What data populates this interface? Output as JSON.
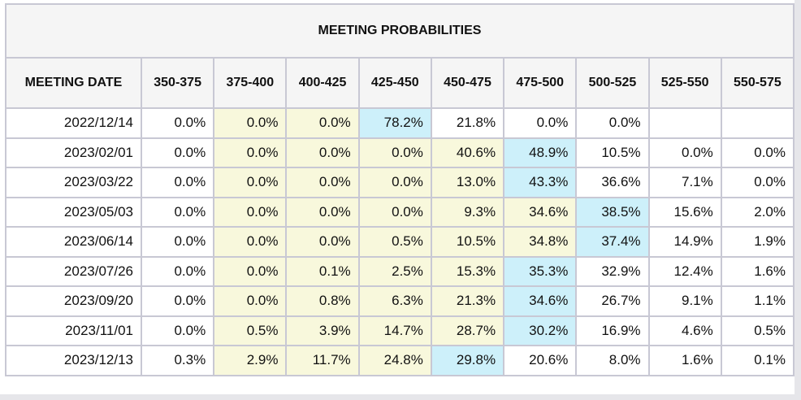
{
  "title": "MEETING PROBABILITIES",
  "headers": [
    "MEETING DATE",
    "350-375",
    "375-400",
    "400-425",
    "425-450",
    "450-475",
    "475-500",
    "500-525",
    "525-550",
    "550-575"
  ],
  "colors": {
    "yellow": "#f8f8dc",
    "blue": "#cdf0fa"
  },
  "rows": [
    {
      "date": "2022/12/14",
      "cells": [
        [
          "0.0%",
          "none"
        ],
        [
          "0.0%",
          "yellow"
        ],
        [
          "0.0%",
          "yellow"
        ],
        [
          "78.2%",
          "blue"
        ],
        [
          "21.8%",
          "none"
        ],
        [
          "0.0%",
          "none"
        ],
        [
          "0.0%",
          "none"
        ],
        [
          "",
          "none"
        ],
        [
          "",
          "none"
        ]
      ]
    },
    {
      "date": "2023/02/01",
      "cells": [
        [
          "0.0%",
          "none"
        ],
        [
          "0.0%",
          "yellow"
        ],
        [
          "0.0%",
          "yellow"
        ],
        [
          "0.0%",
          "yellow"
        ],
        [
          "40.6%",
          "yellow"
        ],
        [
          "48.9%",
          "blue"
        ],
        [
          "10.5%",
          "none"
        ],
        [
          "0.0%",
          "none"
        ],
        [
          "0.0%",
          "none"
        ]
      ]
    },
    {
      "date": "2023/03/22",
      "cells": [
        [
          "0.0%",
          "none"
        ],
        [
          "0.0%",
          "yellow"
        ],
        [
          "0.0%",
          "yellow"
        ],
        [
          "0.0%",
          "yellow"
        ],
        [
          "13.0%",
          "yellow"
        ],
        [
          "43.3%",
          "blue"
        ],
        [
          "36.6%",
          "none"
        ],
        [
          "7.1%",
          "none"
        ],
        [
          "0.0%",
          "none"
        ]
      ]
    },
    {
      "date": "2023/05/03",
      "cells": [
        [
          "0.0%",
          "none"
        ],
        [
          "0.0%",
          "yellow"
        ],
        [
          "0.0%",
          "yellow"
        ],
        [
          "0.0%",
          "yellow"
        ],
        [
          "9.3%",
          "yellow"
        ],
        [
          "34.6%",
          "yellow"
        ],
        [
          "38.5%",
          "blue"
        ],
        [
          "15.6%",
          "none"
        ],
        [
          "2.0%",
          "none"
        ]
      ]
    },
    {
      "date": "2023/06/14",
      "cells": [
        [
          "0.0%",
          "none"
        ],
        [
          "0.0%",
          "yellow"
        ],
        [
          "0.0%",
          "yellow"
        ],
        [
          "0.5%",
          "yellow"
        ],
        [
          "10.5%",
          "yellow"
        ],
        [
          "34.8%",
          "yellow"
        ],
        [
          "37.4%",
          "blue"
        ],
        [
          "14.9%",
          "none"
        ],
        [
          "1.9%",
          "none"
        ]
      ]
    },
    {
      "date": "2023/07/26",
      "cells": [
        [
          "0.0%",
          "none"
        ],
        [
          "0.0%",
          "yellow"
        ],
        [
          "0.1%",
          "yellow"
        ],
        [
          "2.5%",
          "yellow"
        ],
        [
          "15.3%",
          "yellow"
        ],
        [
          "35.3%",
          "blue"
        ],
        [
          "32.9%",
          "none"
        ],
        [
          "12.4%",
          "none"
        ],
        [
          "1.6%",
          "none"
        ]
      ]
    },
    {
      "date": "2023/09/20",
      "cells": [
        [
          "0.0%",
          "none"
        ],
        [
          "0.0%",
          "yellow"
        ],
        [
          "0.8%",
          "yellow"
        ],
        [
          "6.3%",
          "yellow"
        ],
        [
          "21.3%",
          "yellow"
        ],
        [
          "34.6%",
          "blue"
        ],
        [
          "26.7%",
          "none"
        ],
        [
          "9.1%",
          "none"
        ],
        [
          "1.1%",
          "none"
        ]
      ]
    },
    {
      "date": "2023/11/01",
      "cells": [
        [
          "0.0%",
          "none"
        ],
        [
          "0.5%",
          "yellow"
        ],
        [
          "3.9%",
          "yellow"
        ],
        [
          "14.7%",
          "yellow"
        ],
        [
          "28.7%",
          "yellow"
        ],
        [
          "30.2%",
          "blue"
        ],
        [
          "16.9%",
          "none"
        ],
        [
          "4.6%",
          "none"
        ],
        [
          "0.5%",
          "none"
        ]
      ]
    },
    {
      "date": "2023/12/13",
      "cells": [
        [
          "0.3%",
          "none"
        ],
        [
          "2.9%",
          "yellow"
        ],
        [
          "11.7%",
          "yellow"
        ],
        [
          "24.8%",
          "yellow"
        ],
        [
          "29.8%",
          "blue"
        ],
        [
          "20.6%",
          "none"
        ],
        [
          "8.0%",
          "none"
        ],
        [
          "1.6%",
          "none"
        ],
        [
          "0.1%",
          "none"
        ]
      ]
    }
  ]
}
